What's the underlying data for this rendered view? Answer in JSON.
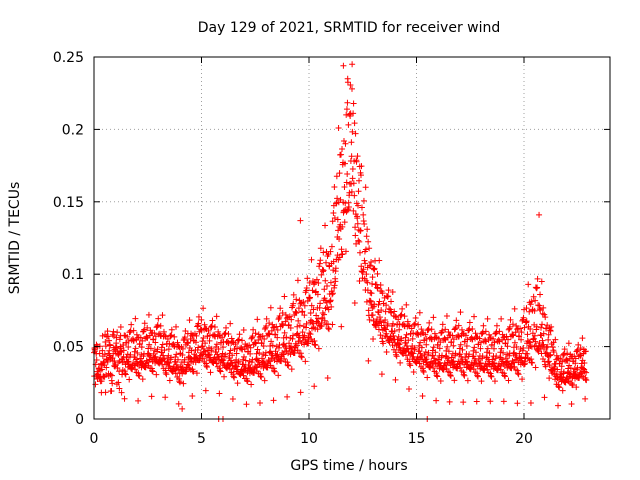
{
  "chart_data": {
    "type": "scatter",
    "title": "Day 129 of 2021, SRMTID for receiver wind",
    "xlabel": "GPS time / hours",
    "ylabel": "SRMTID / TECUs",
    "xlim": [
      0,
      24
    ],
    "ylim": [
      0,
      0.25
    ],
    "x_ticks": [
      0,
      5,
      10,
      15,
      20
    ],
    "x_tick_labels": [
      "0",
      "5",
      "10",
      "15",
      "20"
    ],
    "y_ticks": [
      0,
      0.05,
      0.1,
      0.15,
      0.2,
      0.25
    ],
    "y_tick_labels": [
      "0",
      "0.05",
      "0.1",
      "0.15",
      "0.2",
      "0.25"
    ],
    "grid": true,
    "marker": "+",
    "color": "#ff0000",
    "series": [
      {
        "name": "SRMTID",
        "note": "approximately 2000 points, one every ~40 s; envelope values below give typical level (mean) and scatter (spread) per hour",
        "n_points": 2000,
        "envelope_hours": [
          0,
          1,
          2,
          3,
          4,
          5,
          6,
          7,
          8,
          9,
          10,
          11,
          11.5,
          12,
          12.5,
          13,
          14,
          15,
          16,
          17,
          18,
          19,
          20,
          20.5,
          21,
          21.5,
          22,
          22.9
        ],
        "envelope_mean": [
          0.037,
          0.043,
          0.04,
          0.045,
          0.035,
          0.048,
          0.042,
          0.035,
          0.042,
          0.05,
          0.062,
          0.085,
          0.14,
          0.175,
          0.11,
          0.075,
          0.055,
          0.045,
          0.04,
          0.042,
          0.04,
          0.04,
          0.045,
          0.06,
          0.05,
          0.03,
          0.03,
          0.035
        ],
        "envelope_spread": [
          0.015,
          0.02,
          0.02,
          0.02,
          0.018,
          0.02,
          0.018,
          0.018,
          0.022,
          0.025,
          0.03,
          0.04,
          0.055,
          0.06,
          0.045,
          0.03,
          0.02,
          0.02,
          0.02,
          0.022,
          0.02,
          0.02,
          0.025,
          0.035,
          0.025,
          0.015,
          0.015,
          0.015
        ],
        "highlighted_points": [
          {
            "x": 11.6,
            "y": 0.244
          },
          {
            "x": 11.8,
            "y": 0.235
          },
          {
            "x": 12.0,
            "y": 0.228
          },
          {
            "x": 20.7,
            "y": 0.141
          },
          {
            "x": 9.6,
            "y": 0.137
          },
          {
            "x": 4.1,
            "y": 0.007
          },
          {
            "x": 5.8,
            "y": 0.0
          },
          {
            "x": 6.0,
            "y": 0.0
          },
          {
            "x": 15.5,
            "y": 0.0
          }
        ]
      }
    ]
  }
}
